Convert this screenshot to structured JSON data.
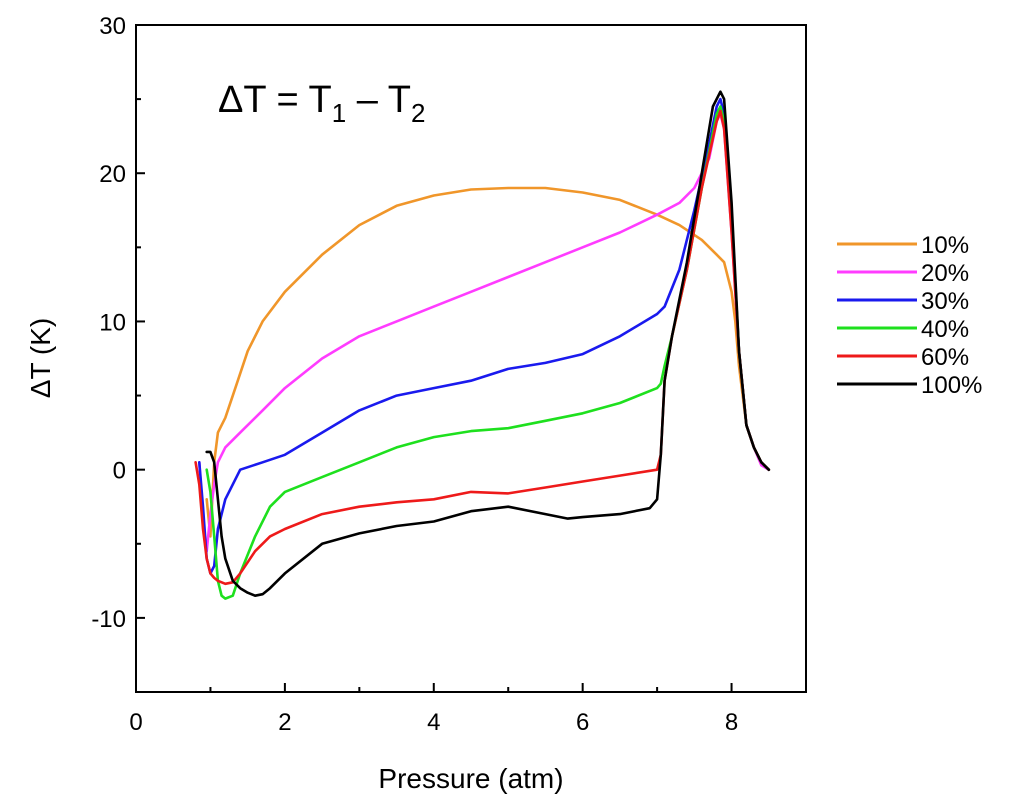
{
  "chart_data": {
    "type": "line",
    "title": "",
    "xlabel": "Pressure (atm)",
    "ylabel": "ΔT (K)",
    "xlim": [
      0,
      9
    ],
    "ylim": [
      -15,
      30
    ],
    "xticks": [
      0,
      2,
      4,
      6,
      8
    ],
    "yticks": [
      -10,
      0,
      10,
      20,
      30
    ],
    "grid": false,
    "legend_position": "right",
    "annotation": {
      "prefix": "ΔT = T",
      "sub1": "1",
      "mid": " – T",
      "sub2": "2"
    },
    "series": [
      {
        "name": "10%",
        "color": "#f0962a",
        "x": [
          0.95,
          1.0,
          1.05,
          1.1,
          1.2,
          1.3,
          1.5,
          1.7,
          2.0,
          2.5,
          3.0,
          3.5,
          4.0,
          4.5,
          5.0,
          5.5,
          6.0,
          6.5,
          7.0,
          7.3,
          7.6,
          7.8,
          7.9,
          8.0,
          8.05,
          8.1,
          8.2,
          8.3,
          8.4,
          8.5
        ],
        "y": [
          -2.0,
          -4.5,
          0.5,
          2.5,
          3.5,
          5.0,
          8.0,
          10.0,
          12.0,
          14.5,
          16.5,
          17.8,
          18.5,
          18.9,
          19.0,
          19.0,
          18.7,
          18.2,
          17.2,
          16.5,
          15.5,
          14.5,
          14.0,
          12.0,
          10.0,
          7.0,
          3.0,
          1.5,
          0.5,
          0.0
        ]
      },
      {
        "name": "20%",
        "color": "#ff3cff",
        "x": [
          0.85,
          0.9,
          0.95,
          1.0,
          1.05,
          1.1,
          1.2,
          1.4,
          1.7,
          2.0,
          2.5,
          3.0,
          3.5,
          4.0,
          4.5,
          5.0,
          5.5,
          6.0,
          6.5,
          7.0,
          7.3,
          7.5,
          7.7,
          7.8,
          7.85,
          7.9,
          8.0,
          8.1,
          8.2,
          8.3,
          8.4,
          8.5
        ],
        "y": [
          0.5,
          -3.5,
          -5.5,
          -3.0,
          -1.0,
          0.5,
          1.5,
          2.5,
          4.0,
          5.5,
          7.5,
          9.0,
          10.0,
          11.0,
          12.0,
          13.0,
          14.0,
          15.0,
          16.0,
          17.2,
          18.0,
          19.0,
          21.0,
          23.5,
          24.0,
          23.0,
          16.0,
          8.0,
          3.0,
          1.5,
          0.3,
          0.0
        ]
      },
      {
        "name": "30%",
        "color": "#1a1aee",
        "x": [
          0.85,
          0.9,
          0.95,
          1.0,
          1.05,
          1.1,
          1.2,
          1.4,
          1.7,
          2.0,
          2.5,
          3.0,
          3.5,
          4.0,
          4.5,
          5.0,
          5.5,
          6.0,
          6.5,
          7.0,
          7.1,
          7.3,
          7.5,
          7.7,
          7.8,
          7.85,
          7.9,
          8.0,
          8.1,
          8.2,
          8.3,
          8.4,
          8.5
        ],
        "y": [
          0.5,
          -2.5,
          -6.0,
          -7.0,
          -6.5,
          -4.0,
          -2.0,
          0.0,
          0.5,
          1.0,
          2.5,
          4.0,
          5.0,
          5.5,
          6.0,
          6.8,
          7.2,
          7.8,
          9.0,
          10.5,
          11.0,
          13.5,
          17.5,
          22.0,
          24.5,
          25.0,
          24.0,
          17.0,
          8.0,
          3.0,
          1.5,
          0.5,
          0.0
        ]
      },
      {
        "name": "40%",
        "color": "#1ee01e",
        "x": [
          0.95,
          1.0,
          1.05,
          1.1,
          1.15,
          1.2,
          1.3,
          1.4,
          1.6,
          1.8,
          2.0,
          2.5,
          3.0,
          3.5,
          4.0,
          4.5,
          5.0,
          5.5,
          6.0,
          6.5,
          7.0,
          7.05,
          7.1,
          7.2,
          7.4,
          7.6,
          7.8,
          7.85,
          7.9,
          8.0,
          8.1,
          8.2,
          8.3,
          8.4,
          8.5
        ],
        "y": [
          0.0,
          -1.5,
          -4.5,
          -7.5,
          -8.5,
          -8.7,
          -8.5,
          -7.0,
          -4.5,
          -2.5,
          -1.5,
          -0.5,
          0.5,
          1.5,
          2.2,
          2.6,
          2.8,
          3.3,
          3.8,
          4.5,
          5.5,
          5.8,
          7.0,
          9.0,
          13.5,
          19.0,
          24.0,
          24.5,
          23.5,
          17.0,
          8.0,
          3.0,
          1.5,
          0.5,
          0.0
        ]
      },
      {
        "name": "60%",
        "color": "#ee1a1a",
        "x": [
          0.8,
          0.85,
          0.9,
          0.95,
          1.0,
          1.05,
          1.1,
          1.2,
          1.3,
          1.4,
          1.6,
          1.8,
          2.0,
          2.5,
          3.0,
          3.5,
          4.0,
          4.5,
          5.0,
          5.5,
          6.0,
          6.5,
          7.0,
          7.05,
          7.1,
          7.2,
          7.4,
          7.6,
          7.8,
          7.85,
          7.9,
          8.0,
          8.1,
          8.2,
          8.3,
          8.4,
          8.5
        ],
        "y": [
          0.5,
          -1.0,
          -4.0,
          -6.0,
          -7.0,
          -7.3,
          -7.5,
          -7.7,
          -7.6,
          -7.0,
          -5.5,
          -4.5,
          -4.0,
          -3.0,
          -2.5,
          -2.2,
          -2.0,
          -1.5,
          -1.6,
          -1.2,
          -0.8,
          -0.4,
          0.0,
          1.0,
          6.0,
          9.0,
          13.5,
          19.0,
          23.5,
          24.2,
          23.0,
          16.0,
          8.0,
          3.0,
          1.5,
          0.5,
          0.0
        ]
      },
      {
        "name": "100%",
        "color": "#000000",
        "x": [
          0.95,
          1.0,
          1.05,
          1.1,
          1.15,
          1.2,
          1.3,
          1.4,
          1.5,
          1.6,
          1.7,
          1.8,
          2.0,
          2.5,
          3.0,
          3.5,
          4.0,
          4.5,
          5.0,
          5.5,
          5.8,
          6.0,
          6.5,
          6.9,
          7.0,
          7.05,
          7.1,
          7.2,
          7.4,
          7.6,
          7.75,
          7.85,
          7.9,
          8.0,
          8.1,
          8.2,
          8.3,
          8.4,
          8.5
        ],
        "y": [
          1.2,
          1.2,
          0.5,
          -2.0,
          -4.5,
          -6.0,
          -7.5,
          -8.0,
          -8.3,
          -8.5,
          -8.4,
          -8.0,
          -7.0,
          -5.0,
          -4.3,
          -3.8,
          -3.5,
          -2.8,
          -2.5,
          -3.0,
          -3.3,
          -3.2,
          -3.0,
          -2.6,
          -2.0,
          1.0,
          6.0,
          9.0,
          14.0,
          20.0,
          24.5,
          25.5,
          25.0,
          18.0,
          8.0,
          3.0,
          1.5,
          0.5,
          0.0
        ]
      }
    ]
  }
}
